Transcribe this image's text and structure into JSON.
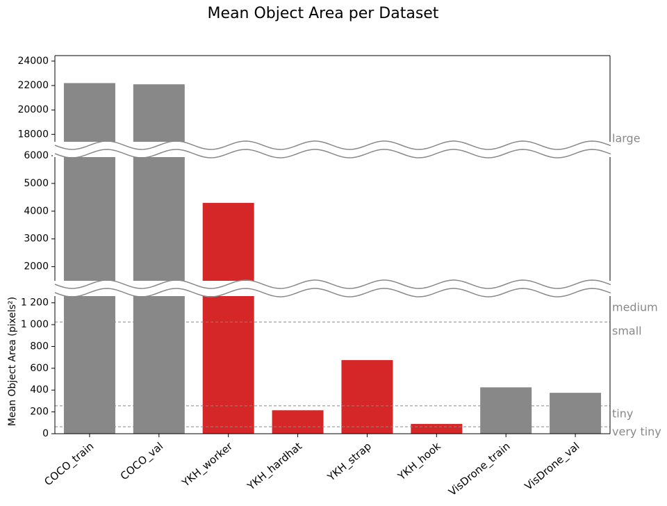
{
  "chart_data": {
    "type": "bar",
    "title": "Mean Object Area per Dataset",
    "ylabel": "Mean Object Area (pixels²)",
    "categories": [
      "COCO_train",
      "COCO_val",
      "YKH_worker",
      "YKH_hardhat",
      "YKH_strap",
      "YKH_hook",
      "VisDrone_train",
      "VisDrone_val"
    ],
    "values": [
      22200,
      22100,
      4300,
      215,
      675,
      90,
      425,
      375
    ],
    "colors": [
      "#888888",
      "#888888",
      "#d62728",
      "#d62728",
      "#d62728",
      "#d62728",
      "#888888",
      "#888888"
    ],
    "panels": [
      {
        "ylim": [
          17050,
          24450
        ],
        "yticks": [
          18000,
          20000,
          22000,
          24000
        ]
      },
      {
        "ylim": [
          1340,
          6100
        ],
        "yticks": [
          2000,
          3000,
          4000,
          5000,
          6000
        ]
      },
      {
        "ylim": [
          0,
          1300
        ],
        "yticks": [
          0,
          200,
          400,
          600,
          800,
          {
            "value": 1000,
            "label": "1 000"
          },
          {
            "value": 1200,
            "label": "1 200"
          }
        ]
      }
    ],
    "thresholds": [
      1024,
      256,
      64
    ],
    "annotations": [
      "large",
      "medium",
      "small",
      "tiny",
      "very tiny"
    ]
  }
}
